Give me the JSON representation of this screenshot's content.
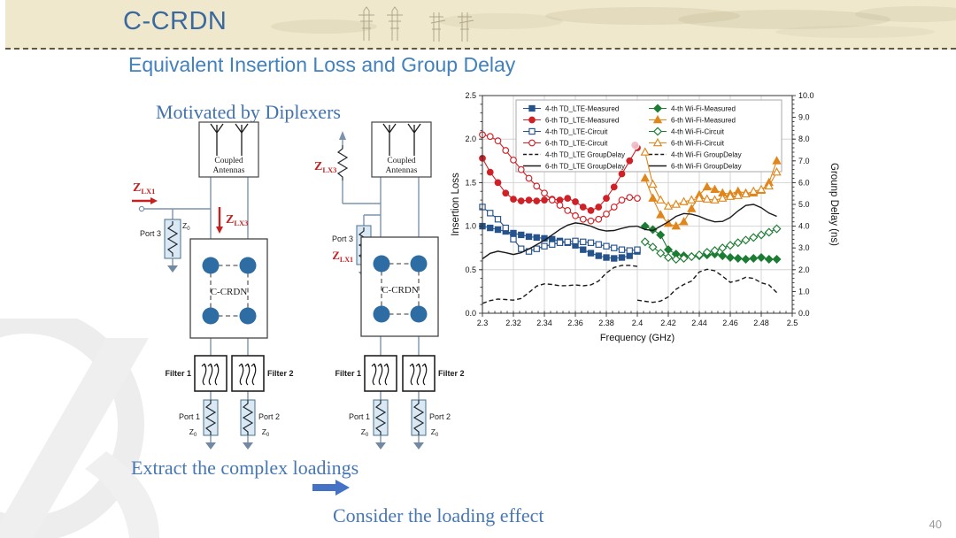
{
  "slide": {
    "title": "C-CRDN",
    "subtitle": "Equivalent Insertion Loss and Group Delay",
    "page_number": "40",
    "colors": {
      "header_band": "#efe8cc",
      "title_blue": "#39699f",
      "subtitle_blue": "#4181be",
      "serif_blue": "#4677b4",
      "diagram_red": "#c42222",
      "wire_slate": "#7b93ad",
      "node_circle": "#2e6da4",
      "arrow_blue": "#4472c4"
    }
  },
  "left_panel": {
    "caption": "Motivated by Diplexers",
    "extract_text": "Extract the complex loadings",
    "consider_text": "Consider the loading effect"
  },
  "diagram_labels": {
    "coupled1": "Coupled",
    "coupled2": "Antennas",
    "crdn": "C-CRDN",
    "filter1": "Filter 1",
    "filter2": "Filter 2",
    "port1": "Port 1",
    "port2": "Port 2",
    "port3": "Port 3",
    "z": "Z",
    "sub0": "0",
    "lx1": "LX1",
    "lx3": "LX3"
  },
  "chart_data": {
    "type": "line",
    "xlabel": "Frequency (GHz)",
    "ylabel_left": "Insertion Loss",
    "ylabel_right": "Grounp Delay (ns)",
    "xlim": [
      2.3,
      2.5
    ],
    "ylim_left": [
      0,
      2.5
    ],
    "ylim_right": [
      0,
      10
    ],
    "grid": true,
    "legend_position": "top-inside",
    "xticks": [
      2.3,
      2.32,
      2.34,
      2.36,
      2.38,
      2.4,
      2.42,
      2.44,
      2.46,
      2.48,
      2.5
    ],
    "xtick_labels": [
      "2.3",
      "2.32",
      "2.34",
      "2.36",
      "2.38",
      "2.4",
      "2.42",
      "2.44",
      "2.46",
      "2.48",
      "2.5"
    ],
    "yticks_left": [
      0,
      0.5,
      1.0,
      1.5,
      2.0,
      2.5
    ],
    "ytick_labels_left": [
      "0.0",
      "0.5",
      "1.0",
      "1.5",
      "2.0",
      "2.5"
    ],
    "yticks_right": [
      0,
      1,
      2,
      3,
      4,
      5,
      6,
      7,
      8,
      9,
      10
    ],
    "ytick_labels_right": [
      "0.0",
      "1.0",
      "2.0",
      "3.0",
      "4.0",
      "5.0",
      "6.0",
      "7.0",
      "8.0",
      "9.0",
      "10.0"
    ],
    "x_td_lte": [
      2.3,
      2.305,
      2.31,
      2.315,
      2.32,
      2.325,
      2.33,
      2.335,
      2.34,
      2.345,
      2.35,
      2.355,
      2.36,
      2.365,
      2.37,
      2.375,
      2.38,
      2.385,
      2.39,
      2.395,
      2.4
    ],
    "x_wifi": [
      2.405,
      2.41,
      2.415,
      2.42,
      2.425,
      2.43,
      2.435,
      2.44,
      2.445,
      2.45,
      2.455,
      2.46,
      2.465,
      2.47,
      2.475,
      2.48,
      2.485,
      2.49
    ],
    "x_wifi_gd": [
      2.4,
      2.405,
      2.41,
      2.415,
      2.42,
      2.425,
      2.43,
      2.435,
      2.44,
      2.445,
      2.45,
      2.455,
      2.46,
      2.465,
      2.47,
      2.475,
      2.48,
      2.485,
      2.49
    ],
    "series": [
      {
        "name": "4-th TD_LTE-Measured",
        "color": "#26538c",
        "marker": "square",
        "fill": "filled",
        "line": "solid",
        "axis": "left",
        "x_ref": "x_td_lte",
        "y": [
          1.0,
          0.98,
          0.96,
          0.94,
          0.92,
          0.9,
          0.88,
          0.87,
          0.86,
          0.85,
          0.83,
          0.81,
          0.78,
          0.73,
          0.69,
          0.66,
          0.64,
          0.63,
          0.64,
          0.66,
          0.71
        ]
      },
      {
        "name": "6-th TD_LTE-Measured",
        "color": "#cf2127",
        "marker": "circle",
        "fill": "filled",
        "line": "solid",
        "axis": "left",
        "x_ref": "x_td_lte",
        "y": [
          1.78,
          1.62,
          1.5,
          1.38,
          1.31,
          1.29,
          1.3,
          1.29,
          1.3,
          1.31,
          1.3,
          1.32,
          1.28,
          1.22,
          1.18,
          1.22,
          1.32,
          1.45,
          1.6,
          1.75,
          1.9
        ]
      },
      {
        "name": "4-th TD_LTE-Circuit",
        "color": "#26538c",
        "marker": "square",
        "fill": "open",
        "line": "solid",
        "axis": "left",
        "x_ref": "x_td_lte",
        "y": [
          1.22,
          1.15,
          1.08,
          0.98,
          0.85,
          0.74,
          0.71,
          0.74,
          0.77,
          0.79,
          0.81,
          0.82,
          0.83,
          0.82,
          0.81,
          0.79,
          0.77,
          0.75,
          0.73,
          0.72,
          0.73
        ]
      },
      {
        "name": "6-th TD_LTE-Circuit",
        "color": "#cf2127",
        "marker": "circle",
        "fill": "open",
        "line": "solid",
        "axis": "left",
        "x_ref": "x_td_lte",
        "y": [
          2.05,
          2.03,
          1.98,
          1.87,
          1.76,
          1.65,
          1.55,
          1.46,
          1.38,
          1.3,
          1.24,
          1.18,
          1.12,
          1.08,
          1.06,
          1.08,
          1.14,
          1.22,
          1.3,
          1.33,
          1.32
        ]
      },
      {
        "name": "4-th TD_LTE GroupDelay",
        "color": "#1a1a1a",
        "marker": "none",
        "fill": "filled",
        "line": "dashed",
        "axis": "right",
        "x_ref": "x_td_lte",
        "y": [
          0.45,
          0.58,
          0.65,
          0.63,
          0.6,
          0.68,
          0.95,
          1.25,
          1.35,
          1.32,
          1.26,
          1.27,
          1.3,
          1.26,
          1.3,
          1.48,
          1.85,
          2.1,
          2.2,
          2.2,
          2.15
        ]
      },
      {
        "name": "6-th TD_LTE GroupDelay",
        "color": "#1a1a1a",
        "marker": "none",
        "fill": "filled",
        "line": "solid",
        "axis": "right",
        "x_ref": "x_td_lte",
        "y": [
          2.5,
          2.75,
          2.85,
          2.78,
          2.7,
          2.78,
          2.95,
          3.15,
          3.35,
          3.6,
          3.85,
          4.05,
          4.15,
          4.1,
          4.0,
          3.85,
          3.78,
          3.8,
          3.9,
          3.98,
          4.0
        ]
      },
      {
        "name": "4-th Wi-Fi-Measured",
        "color": "#1d7c33",
        "marker": "diamond",
        "fill": "filled",
        "line": "solid",
        "axis": "left",
        "x_ref": "x_wifi",
        "y": [
          1.0,
          0.96,
          0.9,
          0.73,
          0.68,
          0.66,
          0.65,
          0.66,
          0.67,
          0.68,
          0.66,
          0.64,
          0.63,
          0.62,
          0.63,
          0.64,
          0.62,
          0.62
        ]
      },
      {
        "name": "6-th Wi-Fi-Measured",
        "color": "#e0861a",
        "marker": "triangle",
        "fill": "filled",
        "line": "solid",
        "axis": "left",
        "x_ref": "x_wifi",
        "y": [
          1.55,
          1.32,
          1.13,
          1.03,
          1.0,
          1.05,
          1.2,
          1.36,
          1.45,
          1.42,
          1.38,
          1.37,
          1.4,
          1.38,
          1.38,
          1.41,
          1.5,
          1.75
        ]
      },
      {
        "name": "4-th Wi-Fi-Circuit",
        "color": "#1d7c33",
        "marker": "diamond",
        "fill": "open",
        "line": "solid",
        "axis": "left",
        "x_ref": "x_wifi",
        "y": [
          0.82,
          0.76,
          0.69,
          0.64,
          0.62,
          0.63,
          0.65,
          0.67,
          0.7,
          0.72,
          0.75,
          0.78,
          0.81,
          0.84,
          0.87,
          0.9,
          0.93,
          0.97
        ]
      },
      {
        "name": "6-th Wi-Fi-Circuit",
        "color": "#e0861a",
        "marker": "triangle",
        "fill": "open",
        "line": "solid",
        "axis": "left",
        "x_ref": "x_wifi",
        "y": [
          1.85,
          1.48,
          1.3,
          1.23,
          1.25,
          1.28,
          1.3,
          1.32,
          1.31,
          1.3,
          1.32,
          1.34,
          1.35,
          1.37,
          1.4,
          1.42,
          1.46,
          1.62
        ]
      },
      {
        "name": "4-th Wi-Fi GroupDelay",
        "color": "#1a1a1a",
        "marker": "none",
        "fill": "filled",
        "line": "dashed",
        "axis": "right",
        "x_ref": "x_wifi_gd",
        "y": [
          0.6,
          0.55,
          0.5,
          0.56,
          0.75,
          1.1,
          1.32,
          1.48,
          1.9,
          2.02,
          1.95,
          1.7,
          1.42,
          1.5,
          1.65,
          1.6,
          1.4,
          1.3,
          0.95
        ]
      },
      {
        "name": "6-th Wi-Fi GroupDelay",
        "color": "#1a1a1a",
        "marker": "none",
        "fill": "filled",
        "line": "solid",
        "axis": "right",
        "x_ref": "x_wifi_gd",
        "y": [
          4.0,
          3.85,
          3.8,
          4.0,
          4.2,
          4.45,
          4.58,
          4.55,
          4.45,
          4.3,
          4.2,
          4.22,
          4.4,
          4.7,
          4.95,
          5.0,
          4.85,
          4.6,
          4.45
        ]
      }
    ],
    "highlight_point": {
      "x": 2.3985,
      "y": 1.93,
      "color": "#f3bcc9"
    }
  }
}
